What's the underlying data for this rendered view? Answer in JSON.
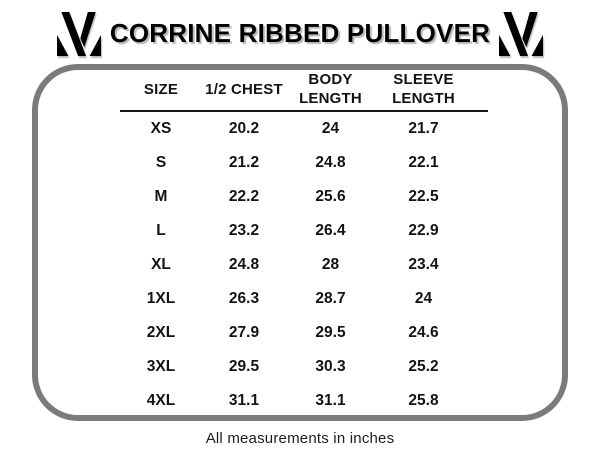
{
  "chart_data": {
    "type": "table",
    "title": "CORRINE RIBBED PULLOVER",
    "columns": [
      "SIZE",
      "1/2 CHEST",
      "BODY LENGTH",
      "SLEEVE LENGTH"
    ],
    "rows": [
      [
        "XS",
        "20.2",
        "24",
        "21.7"
      ],
      [
        "S",
        "21.2",
        "24.8",
        "22.1"
      ],
      [
        "M",
        "22.2",
        "25.6",
        "22.5"
      ],
      [
        "L",
        "23.2",
        "26.4",
        "22.9"
      ],
      [
        "XL",
        "24.8",
        "28",
        "23.4"
      ],
      [
        "1XL",
        "26.3",
        "28.7",
        "24"
      ],
      [
        "2XL",
        "27.9",
        "29.5",
        "24.6"
      ],
      [
        "3XL",
        "29.5",
        "30.3",
        "25.2"
      ],
      [
        "4XL",
        "31.1",
        "31.1",
        "25.8"
      ]
    ],
    "note": "All measurements in inches"
  },
  "brand": {
    "logo": "stylized-m-monogram"
  },
  "colors": {
    "frame_gray": "#7b7b7b",
    "text_black": "#131313",
    "rule_black": "#141414"
  }
}
